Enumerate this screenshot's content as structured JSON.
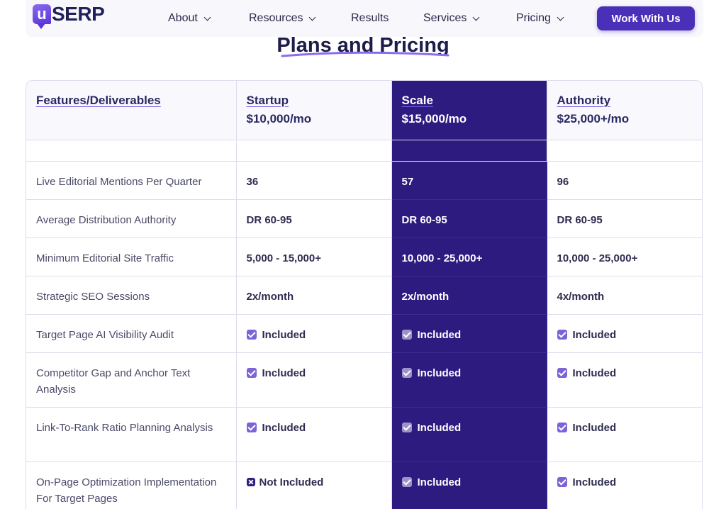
{
  "brand": {
    "logo_letter": "u",
    "logo_text": "SERP"
  },
  "nav": {
    "items": [
      {
        "label": "About",
        "has_dropdown": true
      },
      {
        "label": "Resources",
        "has_dropdown": true
      },
      {
        "label": "Results",
        "has_dropdown": false
      },
      {
        "label": "Services",
        "has_dropdown": true
      },
      {
        "label": "Pricing",
        "has_dropdown": true
      }
    ],
    "cta_label": "Work With Us"
  },
  "section_title": "Plans and Pricing",
  "colors": {
    "accent": "#4a2fb8",
    "highlight_column": "#2d1b80",
    "check": "#7c63d8"
  },
  "table": {
    "features_header": "Features/Deliverables",
    "plans": [
      {
        "name": "Startup",
        "price": "$10,000/mo"
      },
      {
        "name": "Scale",
        "price": "$15,000/mo"
      },
      {
        "name": "Authority",
        "price": "$25,000+/mo"
      }
    ],
    "rows": [
      {
        "feature": "Live Editorial Mentions Per Quarter",
        "values": [
          "36",
          "57",
          "96"
        ]
      },
      {
        "feature": "Average Distribution Authority",
        "values": [
          "DR 60-95",
          "DR 60-95",
          "DR 60-95"
        ]
      },
      {
        "feature": "Minimum Editorial Site Traffic",
        "values": [
          "5,000 - 15,000+",
          "10,000 - 25,000+",
          "10,000 - 25,000+"
        ]
      },
      {
        "feature": "Strategic SEO Sessions",
        "values": [
          "2x/month",
          "2x/month",
          "4x/month"
        ]
      },
      {
        "feature": "Target Page AI Visibility Audit",
        "values": [
          "Included",
          "Included",
          "Included"
        ]
      },
      {
        "feature": "Competitor Gap and Anchor Text Analysis",
        "values": [
          "Included",
          "Included",
          "Included"
        ]
      },
      {
        "feature": "Link-To-Rank Ratio Planning Analysis",
        "values": [
          "Included",
          "Included",
          "Included"
        ]
      },
      {
        "feature": "On-Page Optimization Implementation For Target Pages",
        "values": [
          "Not Included",
          "Included",
          "Included"
        ]
      }
    ]
  }
}
